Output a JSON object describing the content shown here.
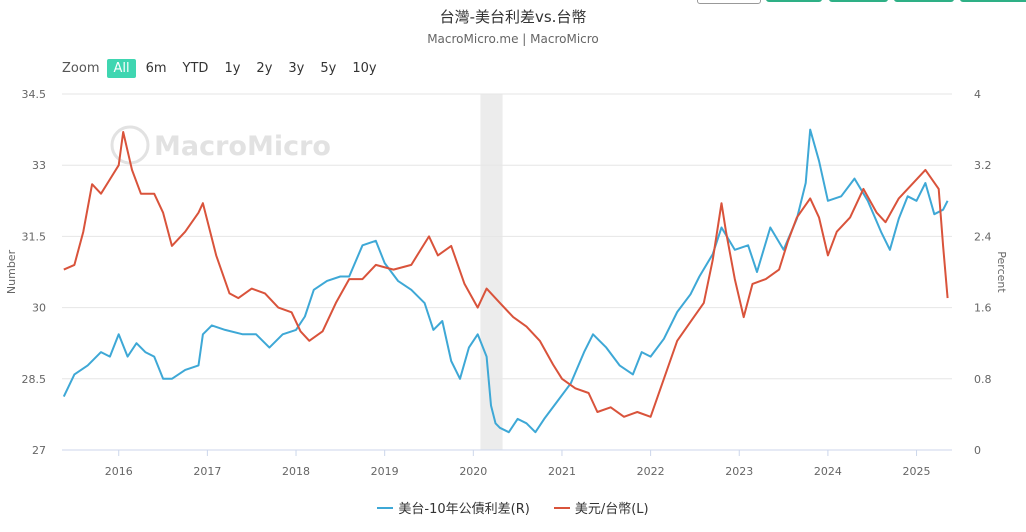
{
  "header": {
    "title": "台灣-美台利差vs.台幣",
    "subtitle": "MacroMicro.me | MacroMicro",
    "top_button_colors": [
      "#ffffff",
      "#2eb086",
      "#2eb086",
      "#2eb086",
      "#2eb086"
    ]
  },
  "zoom": {
    "label": "Zoom",
    "options": [
      "All",
      "6m",
      "YTD",
      "1y",
      "2y",
      "3y",
      "5y",
      "10y"
    ],
    "active": "All",
    "active_color": "#3fd6b1"
  },
  "watermark": "MacroMicro",
  "chart_data": {
    "type": "line",
    "x_ticks": [
      "2016",
      "2017",
      "2018",
      "2019",
      "2020",
      "2021",
      "2022",
      "2023",
      "2024",
      "2025"
    ],
    "x_tick_years": [
      2016,
      2017,
      2018,
      2019,
      2020,
      2021,
      2022,
      2023,
      2024,
      2025
    ],
    "x_range": [
      2015.36,
      2025.4
    ],
    "y_left": {
      "label": "Number",
      "range": [
        27,
        34.5
      ],
      "ticks": [
        "27",
        "28.5",
        "30",
        "31.5",
        "33",
        "34.5"
      ]
    },
    "y_right": {
      "label": "Percent",
      "range": [
        0,
        4
      ],
      "ticks": [
        "0",
        "0.8",
        "1.6",
        "2.4",
        "3.2",
        "4"
      ]
    },
    "recession_band": [
      2020.08,
      2020.33
    ],
    "grid": true,
    "legend_position": "bottom-center",
    "series": [
      {
        "name": "美台-10年公債利差(R)",
        "axis": "right",
        "color": "#3ea8d6",
        "points": [
          [
            2015.38,
            0.6
          ],
          [
            2015.5,
            0.85
          ],
          [
            2015.65,
            0.95
          ],
          [
            2015.8,
            1.1
          ],
          [
            2015.9,
            1.05
          ],
          [
            2016.0,
            1.3
          ],
          [
            2016.1,
            1.05
          ],
          [
            2016.2,
            1.2
          ],
          [
            2016.3,
            1.1
          ],
          [
            2016.4,
            1.05
          ],
          [
            2016.5,
            0.8
          ],
          [
            2016.6,
            0.8
          ],
          [
            2016.75,
            0.9
          ],
          [
            2016.9,
            0.95
          ],
          [
            2016.95,
            1.3
          ],
          [
            2017.05,
            1.4
          ],
          [
            2017.2,
            1.35
          ],
          [
            2017.4,
            1.3
          ],
          [
            2017.55,
            1.3
          ],
          [
            2017.7,
            1.15
          ],
          [
            2017.85,
            1.3
          ],
          [
            2018.0,
            1.35
          ],
          [
            2018.1,
            1.5
          ],
          [
            2018.2,
            1.8
          ],
          [
            2018.35,
            1.9
          ],
          [
            2018.5,
            1.95
          ],
          [
            2018.6,
            1.95
          ],
          [
            2018.75,
            2.3
          ],
          [
            2018.9,
            2.35
          ],
          [
            2019.0,
            2.1
          ],
          [
            2019.15,
            1.9
          ],
          [
            2019.3,
            1.8
          ],
          [
            2019.45,
            1.65
          ],
          [
            2019.55,
            1.35
          ],
          [
            2019.65,
            1.45
          ],
          [
            2019.75,
            1.0
          ],
          [
            2019.85,
            0.8
          ],
          [
            2019.95,
            1.15
          ],
          [
            2020.05,
            1.3
          ],
          [
            2020.15,
            1.05
          ],
          [
            2020.2,
            0.5
          ],
          [
            2020.25,
            0.3
          ],
          [
            2020.3,
            0.25
          ],
          [
            2020.4,
            0.2
          ],
          [
            2020.5,
            0.35
          ],
          [
            2020.6,
            0.3
          ],
          [
            2020.7,
            0.2
          ],
          [
            2020.8,
            0.35
          ],
          [
            2020.95,
            0.55
          ],
          [
            2021.1,
            0.75
          ],
          [
            2021.25,
            1.1
          ],
          [
            2021.35,
            1.3
          ],
          [
            2021.5,
            1.15
          ],
          [
            2021.65,
            0.95
          ],
          [
            2021.8,
            0.85
          ],
          [
            2021.9,
            1.1
          ],
          [
            2022.0,
            1.05
          ],
          [
            2022.15,
            1.25
          ],
          [
            2022.3,
            1.55
          ],
          [
            2022.45,
            1.75
          ],
          [
            2022.55,
            1.95
          ],
          [
            2022.7,
            2.2
          ],
          [
            2022.8,
            2.5
          ],
          [
            2022.95,
            2.25
          ],
          [
            2023.1,
            2.3
          ],
          [
            2023.2,
            2.0
          ],
          [
            2023.35,
            2.5
          ],
          [
            2023.5,
            2.25
          ],
          [
            2023.65,
            2.6
          ],
          [
            2023.75,
            3.0
          ],
          [
            2023.8,
            3.6
          ],
          [
            2023.9,
            3.25
          ],
          [
            2024.0,
            2.8
          ],
          [
            2024.15,
            2.85
          ],
          [
            2024.3,
            3.05
          ],
          [
            2024.45,
            2.8
          ],
          [
            2024.6,
            2.45
          ],
          [
            2024.7,
            2.25
          ],
          [
            2024.8,
            2.6
          ],
          [
            2024.9,
            2.85
          ],
          [
            2025.0,
            2.8
          ],
          [
            2025.1,
            3.0
          ],
          [
            2025.2,
            2.65
          ],
          [
            2025.3,
            2.7
          ],
          [
            2025.35,
            2.8
          ]
        ]
      },
      {
        "name": "美元/台幣(L)",
        "axis": "left",
        "color": "#d9533b",
        "points": [
          [
            2015.38,
            30.8
          ],
          [
            2015.5,
            30.9
          ],
          [
            2015.6,
            31.6
          ],
          [
            2015.7,
            32.6
          ],
          [
            2015.8,
            32.4
          ],
          [
            2015.9,
            32.7
          ],
          [
            2016.0,
            33.0
          ],
          [
            2016.05,
            33.7
          ],
          [
            2016.15,
            32.9
          ],
          [
            2016.25,
            32.4
          ],
          [
            2016.4,
            32.4
          ],
          [
            2016.5,
            32.0
          ],
          [
            2016.6,
            31.3
          ],
          [
            2016.75,
            31.6
          ],
          [
            2016.9,
            32.0
          ],
          [
            2016.95,
            32.2
          ],
          [
            2017.1,
            31.1
          ],
          [
            2017.25,
            30.3
          ],
          [
            2017.35,
            30.2
          ],
          [
            2017.5,
            30.4
          ],
          [
            2017.65,
            30.3
          ],
          [
            2017.8,
            30.0
          ],
          [
            2017.95,
            29.9
          ],
          [
            2018.05,
            29.5
          ],
          [
            2018.15,
            29.3
          ],
          [
            2018.3,
            29.5
          ],
          [
            2018.45,
            30.1
          ],
          [
            2018.6,
            30.6
          ],
          [
            2018.75,
            30.6
          ],
          [
            2018.9,
            30.9
          ],
          [
            2019.1,
            30.8
          ],
          [
            2019.3,
            30.9
          ],
          [
            2019.4,
            31.2
          ],
          [
            2019.5,
            31.5
          ],
          [
            2019.6,
            31.1
          ],
          [
            2019.75,
            31.3
          ],
          [
            2019.9,
            30.5
          ],
          [
            2020.05,
            30.0
          ],
          [
            2020.15,
            30.4
          ],
          [
            2020.3,
            30.1
          ],
          [
            2020.45,
            29.8
          ],
          [
            2020.6,
            29.6
          ],
          [
            2020.75,
            29.3
          ],
          [
            2020.9,
            28.8
          ],
          [
            2021.0,
            28.5
          ],
          [
            2021.15,
            28.3
          ],
          [
            2021.3,
            28.2
          ],
          [
            2021.4,
            27.8
          ],
          [
            2021.55,
            27.9
          ],
          [
            2021.7,
            27.7
          ],
          [
            2021.85,
            27.8
          ],
          [
            2022.0,
            27.7
          ],
          [
            2022.15,
            28.5
          ],
          [
            2022.3,
            29.3
          ],
          [
            2022.45,
            29.7
          ],
          [
            2022.6,
            30.1
          ],
          [
            2022.7,
            31.0
          ],
          [
            2022.8,
            32.2
          ],
          [
            2022.85,
            31.6
          ],
          [
            2022.95,
            30.6
          ],
          [
            2023.05,
            29.8
          ],
          [
            2023.15,
            30.5
          ],
          [
            2023.3,
            30.6
          ],
          [
            2023.45,
            30.8
          ],
          [
            2023.55,
            31.4
          ],
          [
            2023.65,
            31.9
          ],
          [
            2023.8,
            32.3
          ],
          [
            2023.9,
            31.9
          ],
          [
            2024.0,
            31.1
          ],
          [
            2024.1,
            31.6
          ],
          [
            2024.25,
            31.9
          ],
          [
            2024.4,
            32.5
          ],
          [
            2024.55,
            32.0
          ],
          [
            2024.65,
            31.8
          ],
          [
            2024.8,
            32.3
          ],
          [
            2024.95,
            32.6
          ],
          [
            2025.1,
            32.9
          ],
          [
            2025.25,
            32.5
          ],
          [
            2025.3,
            31.3
          ],
          [
            2025.35,
            30.2
          ]
        ]
      }
    ]
  }
}
